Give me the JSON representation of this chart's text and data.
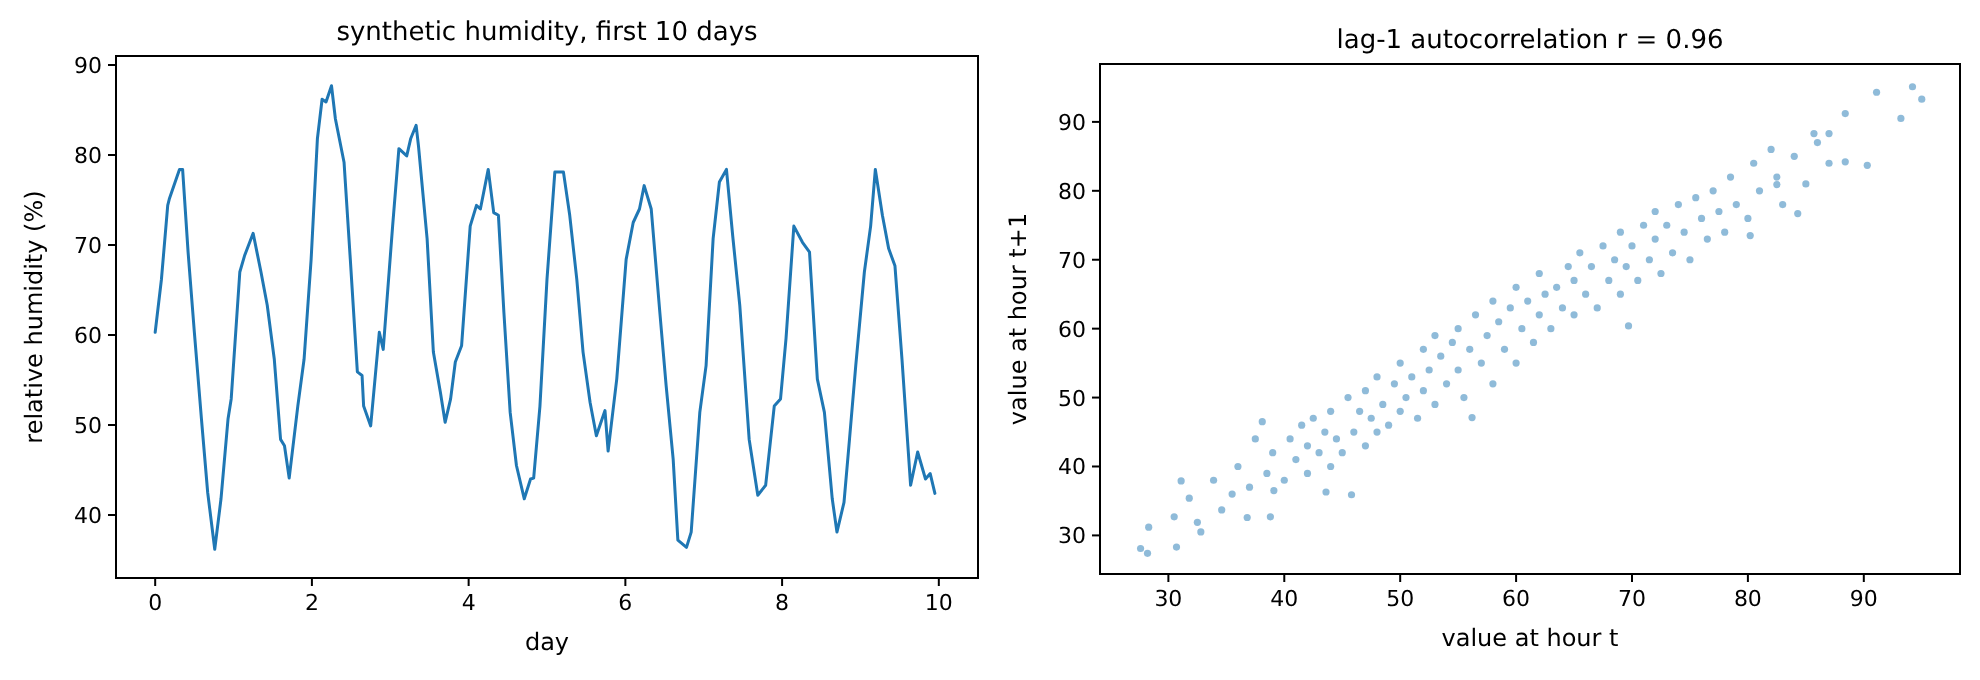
{
  "chart_data": [
    {
      "type": "line",
      "title": "synthetic humidity, first 10 days",
      "xlabel": "day",
      "ylabel": "relative humidity (%)",
      "xlim": [
        -0.5,
        10.5
      ],
      "ylim": [
        33,
        91
      ],
      "xticks": [
        0,
        2,
        4,
        6,
        8,
        10
      ],
      "yticks": [
        40,
        50,
        60,
        70,
        80,
        90
      ],
      "x": [
        0,
        0.08,
        0.16,
        0.18,
        0.31,
        0.35,
        0.42,
        0.5,
        0.59,
        0.67,
        0.76,
        0.84,
        0.93,
        0.97,
        1.08,
        1.14,
        1.25,
        1.35,
        1.43,
        1.52,
        1.6,
        1.65,
        1.71,
        1.82,
        1.9,
        1.99,
        2.07,
        2.13,
        2.18,
        2.25,
        2.3,
        2.41,
        2.49,
        2.58,
        2.64,
        2.66,
        2.75,
        2.86,
        2.91,
        3.03,
        3.11,
        3.21,
        3.26,
        3.33,
        3.36,
        3.47,
        3.55,
        3.64,
        3.7,
        3.77,
        3.83,
        3.91,
        4.02,
        4.1,
        4.15,
        4.25,
        4.32,
        4.38,
        4.45,
        4.53,
        4.61,
        4.71,
        4.79,
        4.83,
        4.91,
        5.0,
        5.1,
        5.21,
        5.29,
        5.38,
        5.46,
        5.55,
        5.63,
        5.74,
        5.78,
        5.89,
        6.01,
        6.1,
        6.18,
        6.24,
        6.33,
        6.44,
        6.52,
        6.61,
        6.67,
        6.78,
        6.84,
        6.95,
        7.03,
        7.12,
        7.2,
        7.29,
        7.37,
        7.46,
        7.58,
        7.69,
        7.79,
        7.9,
        7.98,
        8.05,
        8.15,
        8.26,
        8.35,
        8.45,
        8.54,
        8.64,
        8.7,
        8.79,
        8.86,
        8.94,
        9.05,
        9.13,
        9.19,
        9.28,
        9.36,
        9.44,
        9.53,
        9.64,
        9.73,
        9.83,
        9.89,
        9.95
      ],
      "series": [
        {
          "color": "#1f77b4",
          "values": [
            60.3,
            66.2,
            74.4,
            75.1,
            78.4,
            78.4,
            69.2,
            60.3,
            50.7,
            42.5,
            36.2,
            41.8,
            50.7,
            52.9,
            67.0,
            68.8,
            71.3,
            67.0,
            63.3,
            57.3,
            48.4,
            47.7,
            44.1,
            52.1,
            57.3,
            68.4,
            81.8,
            86.2,
            85.9,
            87.7,
            84.0,
            79.2,
            68.4,
            55.9,
            55.5,
            52.1,
            49.9,
            60.3,
            58.4,
            72.1,
            80.7,
            79.9,
            81.8,
            83.3,
            81.0,
            70.7,
            58.1,
            53.6,
            50.3,
            52.9,
            57.0,
            58.8,
            72.1,
            74.4,
            74.0,
            78.4,
            73.6,
            73.3,
            62.5,
            51.4,
            45.5,
            41.8,
            44.0,
            44.1,
            52.1,
            66.2,
            78.1,
            78.1,
            73.3,
            66.2,
            58.1,
            52.5,
            48.8,
            51.6,
            47.1,
            55.1,
            68.4,
            72.5,
            74.0,
            76.6,
            74.0,
            62.5,
            54.4,
            46.2,
            37.2,
            36.4,
            38.1,
            51.4,
            56.6,
            70.7,
            77.0,
            78.4,
            71.0,
            63.3,
            48.4,
            42.2,
            43.3,
            52.1,
            52.9,
            59.6,
            72.1,
            70.3,
            69.2,
            55.1,
            51.4,
            41.8,
            38.1,
            41.4,
            48.4,
            56.6,
            67.0,
            72.1,
            78.4,
            73.3,
            69.6,
            67.7,
            57.3,
            43.3,
            47.0,
            44.0,
            44.6,
            42.4
          ]
        }
      ]
    },
    {
      "type": "scatter",
      "title": "lag-1 autocorrelation r = 0.96",
      "xlabel": "value at hour t",
      "ylabel": "value at hour t+1",
      "xlim": [
        24.1,
        98.3
      ],
      "ylim": [
        24.4,
        98.4
      ],
      "xticks": [
        30,
        40,
        50,
        60,
        70,
        80,
        90
      ],
      "yticks": [
        30,
        40,
        50,
        60,
        70,
        80,
        90
      ],
      "marker": "circle",
      "x": [
        27.6,
        28.2,
        28.3,
        30.5,
        30.7,
        31.1,
        31.8,
        32.5,
        32.8,
        33.9,
        34.6,
        35.5,
        36.8,
        38.1,
        38.8,
        39.1,
        43.6,
        45.8,
        56.2,
        69.7,
        84.3,
        88.4,
        88.4,
        90.3,
        91.1,
        93.2,
        94.2,
        95,
        87,
        85.7,
        82.5,
        80.2,
        36,
        37,
        37.5,
        38.5,
        39,
        40,
        40.5,
        41,
        41.5,
        42,
        42,
        42.5,
        43,
        43.5,
        44,
        44,
        44.5,
        45,
        45.5,
        46,
        46.5,
        47,
        47,
        47.5,
        48,
        48,
        48.5,
        49,
        49.5,
        50,
        50,
        50.5,
        51,
        51.5,
        52,
        52,
        52.5,
        53,
        53,
        53.5,
        54,
        54.5,
        55,
        55,
        55.5,
        56,
        56.5,
        57,
        57.5,
        58,
        58,
        58.5,
        59,
        59.5,
        60,
        60,
        60.5,
        61,
        61.5,
        62,
        62,
        62.5,
        63,
        63.5,
        64,
        64.5,
        65,
        65,
        65.5,
        66,
        66.5,
        67,
        67.5,
        68,
        68.5,
        69,
        69,
        69.5,
        70,
        70.5,
        71,
        71.5,
        72,
        72,
        72.5,
        73,
        73.5,
        74,
        74.5,
        75,
        75.5,
        76,
        76.5,
        77,
        77.5,
        78,
        78.5,
        79,
        80,
        80.5,
        81,
        82,
        82.5,
        83,
        84,
        85,
        86,
        87
      ],
      "series": [
        {
          "color": "#1f77b4",
          "values": [
            28.1,
            27.4,
            31.2,
            32.7,
            28.3,
            37.9,
            35.4,
            31.9,
            30.5,
            38,
            33.7,
            36,
            32.6,
            46.5,
            32.7,
            36.5,
            36.3,
            35.9,
            47.1,
            60.4,
            76.7,
            91.2,
            84.2,
            83.7,
            94.3,
            90.5,
            95.1,
            93.3,
            88.3,
            88.3,
            80.9,
            73.5,
            40,
            37,
            44,
            39,
            42,
            38,
            44,
            41,
            46,
            39,
            43,
            47,
            42,
            45,
            40,
            48,
            44,
            42,
            50,
            45,
            48,
            43,
            51,
            47,
            45,
            53,
            49,
            46,
            52,
            48,
            55,
            50,
            53,
            47,
            51,
            57,
            54,
            49,
            59,
            56,
            52,
            58,
            54,
            60,
            50,
            57,
            62,
            55,
            59,
            52,
            64,
            61,
            57,
            63,
            55,
            66,
            60,
            64,
            58,
            62,
            68,
            65,
            60,
            66,
            63,
            69,
            62,
            67,
            71,
            65,
            69,
            63,
            72,
            67,
            70,
            65,
            74,
            69,
            72,
            67,
            75,
            70,
            73,
            77,
            68,
            75,
            71,
            78,
            74,
            70,
            79,
            76,
            73,
            80,
            77,
            74,
            82,
            78,
            76,
            84,
            80,
            86,
            82,
            78,
            85,
            81,
            87,
            84
          ]
        }
      ]
    }
  ]
}
